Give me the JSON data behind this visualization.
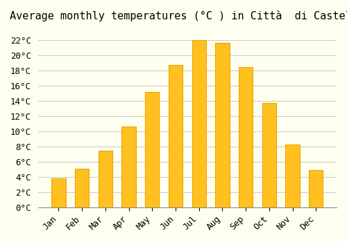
{
  "title": "Average monthly temperatures (°C ) in Città  di Castello",
  "months": [
    "Jan",
    "Feb",
    "Mar",
    "Apr",
    "May",
    "Jun",
    "Jul",
    "Aug",
    "Sep",
    "Oct",
    "Nov",
    "Dec"
  ],
  "temperatures": [
    3.8,
    5.1,
    7.5,
    10.7,
    15.2,
    18.8,
    22.0,
    21.7,
    18.5,
    13.8,
    8.3,
    4.9
  ],
  "bar_color": "#FFC020",
  "bar_edge_color": "#E8A800",
  "background_color": "#FFFFF0",
  "grid_color": "#CCCCCC",
  "title_fontsize": 11,
  "tick_fontsize": 9,
  "ylim": [
    0,
    23.5
  ],
  "ytick_step": 2,
  "figsize": [
    5.0,
    3.5
  ],
  "dpi": 100
}
